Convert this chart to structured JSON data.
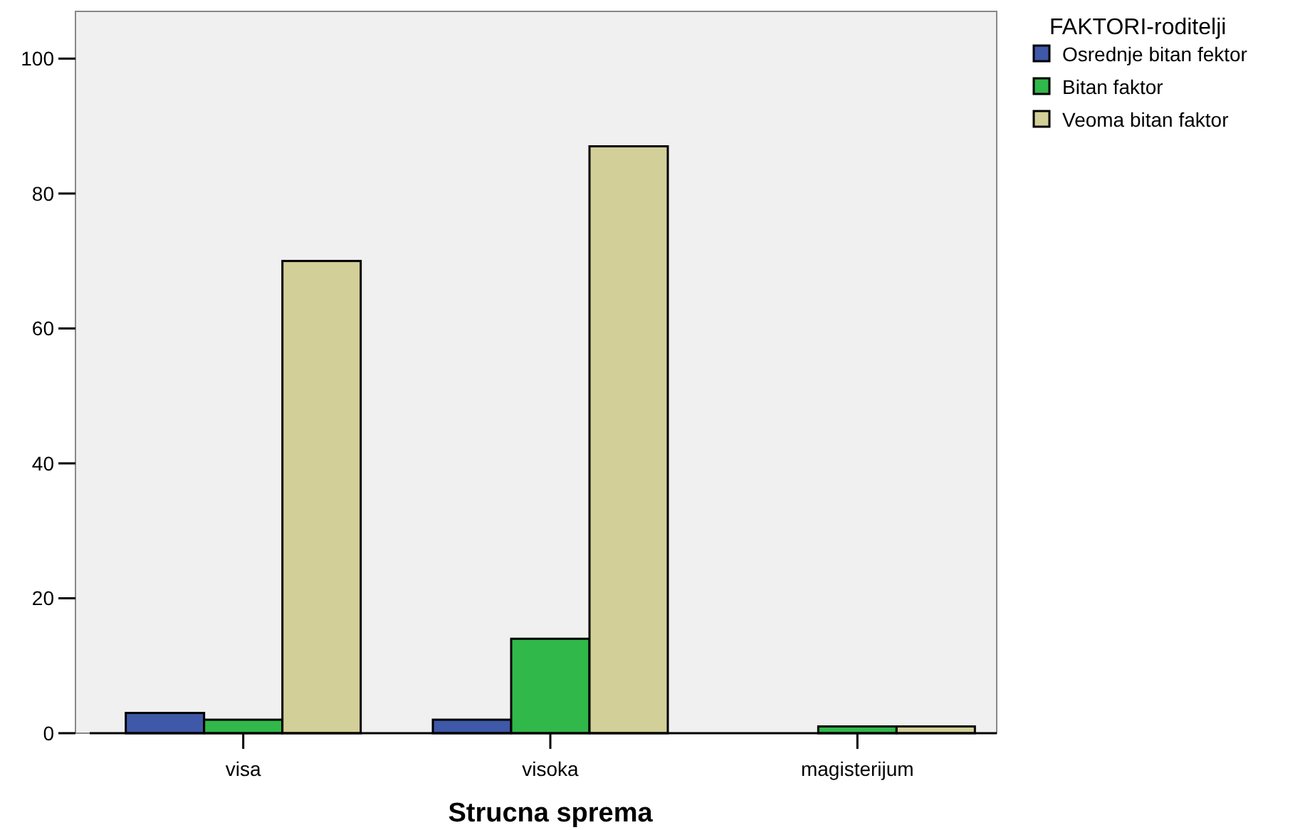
{
  "chart_data": {
    "type": "bar",
    "xlabel": "Strucna sprema",
    "legend_title": "FAKTORI-roditelji",
    "categories": [
      "visa",
      "visoka",
      "magisterijum"
    ],
    "series": [
      {
        "name": "Osrednje bitan fektor",
        "color": "#3f58a8",
        "values": [
          3,
          2,
          null
        ]
      },
      {
        "name": "Bitan faktor",
        "color": "#31b84a",
        "values": [
          2,
          14,
          1
        ]
      },
      {
        "name": "Veoma bitan faktor",
        "color": "#d3cf98",
        "values": [
          70,
          87,
          1
        ]
      }
    ],
    "ylim": [
      0,
      107
    ],
    "yticks": [
      0,
      20,
      40,
      60,
      80,
      100
    ],
    "grid": false,
    "legend": "top right"
  }
}
